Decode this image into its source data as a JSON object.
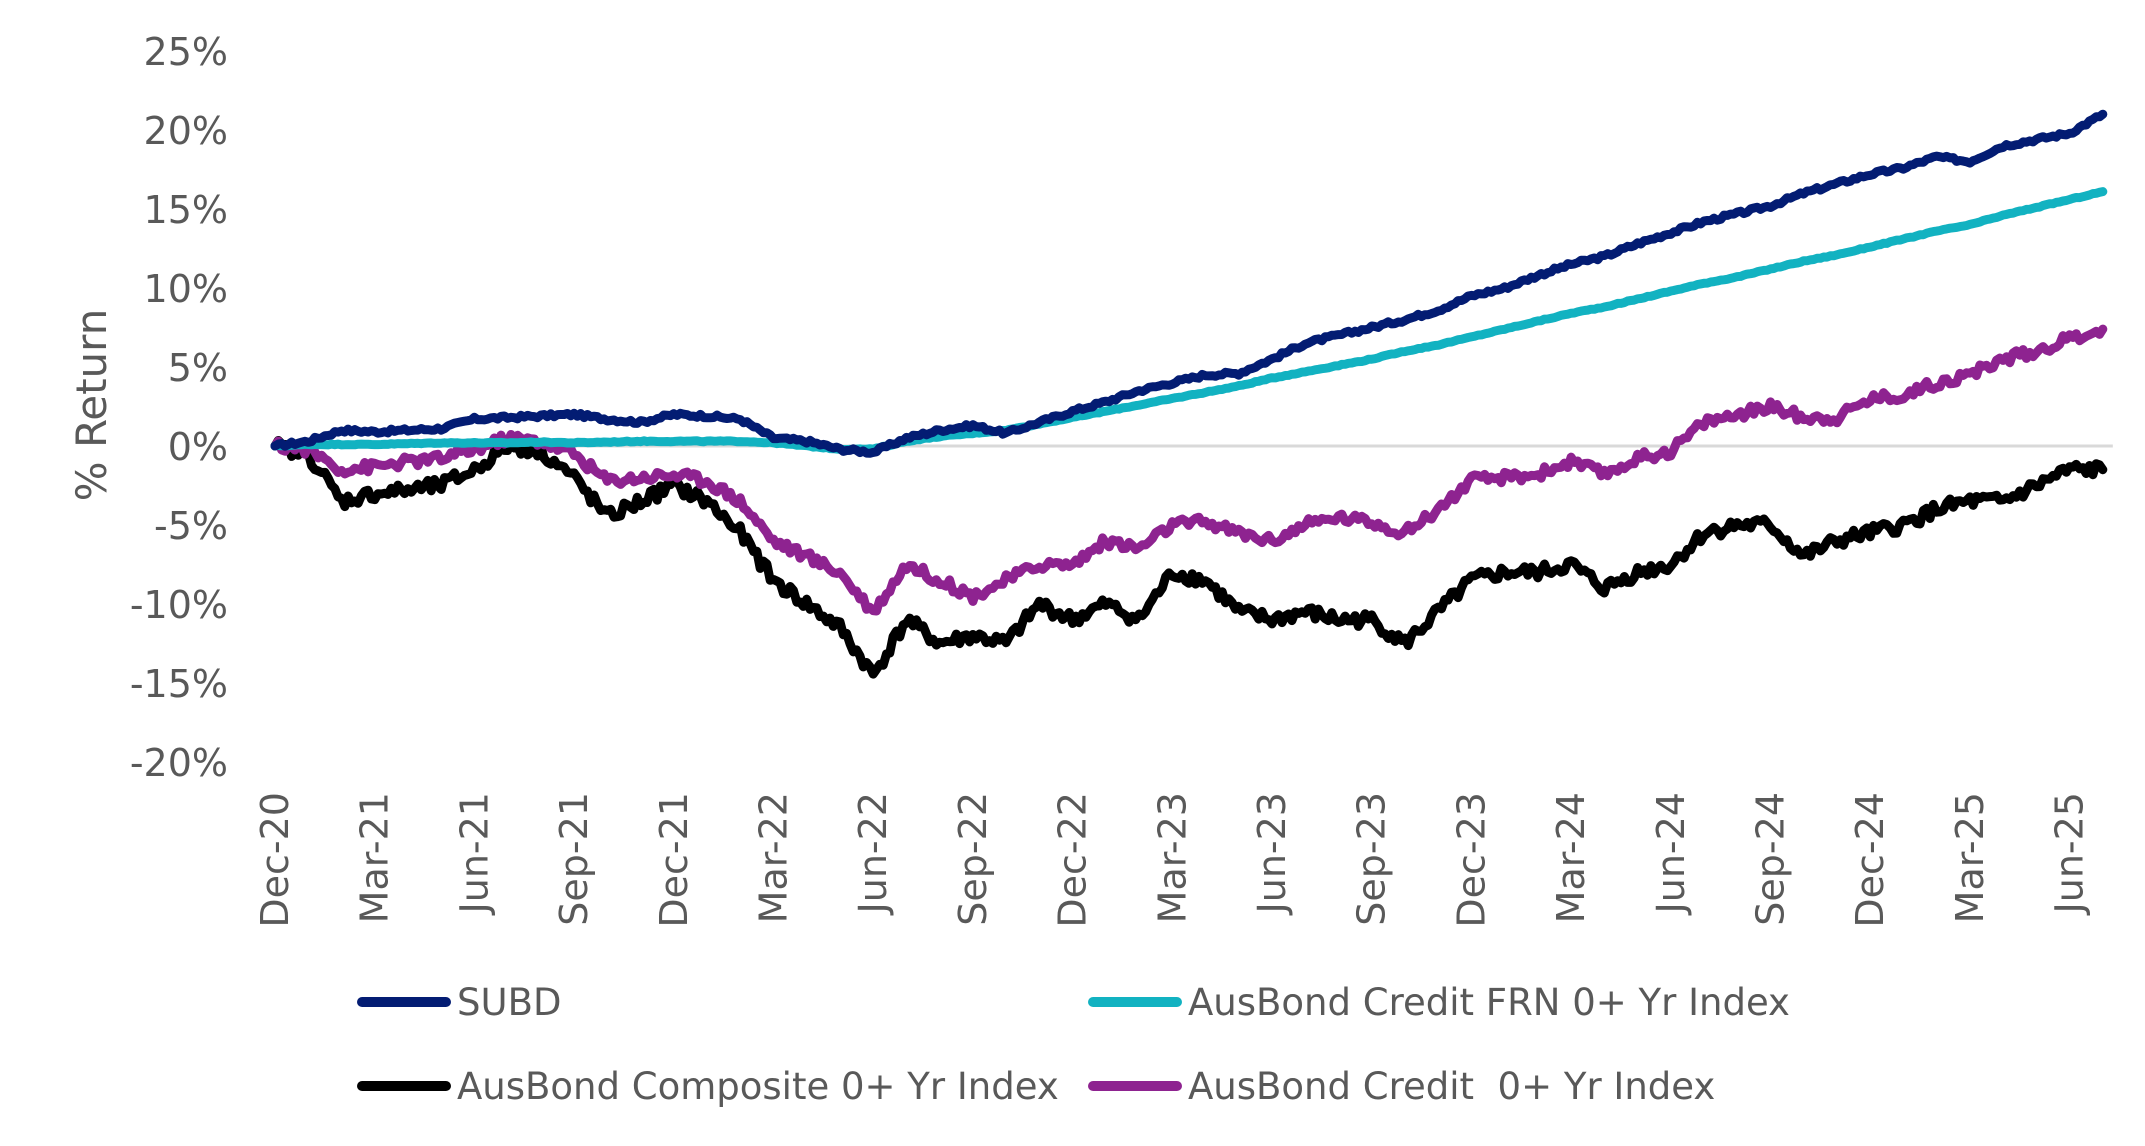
{
  "chart_data": {
    "type": "line",
    "title": "",
    "xlabel": "",
    "ylabel": "% Return",
    "ylim": [
      -20,
      25
    ],
    "yticks": [
      25,
      20,
      15,
      10,
      5,
      0,
      -5,
      -10,
      -15,
      -20
    ],
    "ytick_labels": [
      "25%",
      "20%",
      "15%",
      "10%",
      "5%",
      "0%",
      "-5%",
      "-10%",
      "-15%",
      "-20%"
    ],
    "x_tick_labels": [
      "Dec-20",
      "Mar-21",
      "Jun-21",
      "Sep-21",
      "Dec-21",
      "Mar-22",
      "Jun-22",
      "Sep-22",
      "Dec-22",
      "Mar-23",
      "Jun-23",
      "Sep-23",
      "Dec-23",
      "Mar-24",
      "Jun-24",
      "Sep-24",
      "Dec-24",
      "Mar-25",
      "Jun-25"
    ],
    "x": [
      "Dec-20",
      "Jan-21",
      "Feb-21",
      "Mar-21",
      "Apr-21",
      "May-21",
      "Jun-21",
      "Jul-21",
      "Aug-21",
      "Sep-21",
      "Oct-21",
      "Nov-21",
      "Dec-21",
      "Jan-22",
      "Feb-22",
      "Mar-22",
      "Apr-22",
      "May-22",
      "Jun-22",
      "Jul-22",
      "Aug-22",
      "Sep-22",
      "Oct-22",
      "Nov-22",
      "Dec-22",
      "Jan-23",
      "Feb-23",
      "Mar-23",
      "Apr-23",
      "May-23",
      "Jun-23",
      "Jul-23",
      "Aug-23",
      "Sep-23",
      "Oct-23",
      "Nov-23",
      "Dec-23",
      "Jan-24",
      "Feb-24",
      "Mar-24",
      "Apr-24",
      "May-24",
      "Jun-24",
      "Jul-24",
      "Aug-24",
      "Sep-24",
      "Oct-24",
      "Nov-24",
      "Dec-24",
      "Jan-25",
      "Feb-25",
      "Mar-25",
      "Apr-25",
      "May-25",
      "Jun-25",
      "Jul-25"
    ],
    "zero_line": true,
    "grid": false,
    "legend_position": "bottom",
    "series": [
      {
        "name": "SUBD",
        "color": "#031C73",
        "values": [
          0,
          0.3,
          1.0,
          0.9,
          1.0,
          1.1,
          1.7,
          1.8,
          1.9,
          2.0,
          1.7,
          1.5,
          2.0,
          1.9,
          1.7,
          0.5,
          0.3,
          -0.2,
          -0.4,
          0.5,
          1.0,
          1.3,
          0.8,
          1.5,
          2.2,
          2.8,
          3.5,
          4.0,
          4.5,
          4.6,
          5.5,
          6.5,
          7.0,
          7.5,
          8.0,
          8.6,
          9.5,
          10.0,
          10.8,
          11.5,
          12.0,
          12.8,
          13.5,
          14.2,
          14.7,
          15.2,
          16.0,
          16.6,
          17.2,
          17.6,
          18.3,
          18.0,
          19.0,
          19.4,
          19.8,
          21.0
        ]
      },
      {
        "name": "AusBond Credit FRN 0+ Yr Index",
        "color": "#12B2C1",
        "values": [
          0,
          0.1,
          0.1,
          0.1,
          0.15,
          0.2,
          0.2,
          0.2,
          0.25,
          0.2,
          0.25,
          0.3,
          0.3,
          0.3,
          0.3,
          0.2,
          0.0,
          -0.2,
          -0.2,
          0.3,
          0.6,
          0.8,
          1.0,
          1.4,
          1.8,
          2.2,
          2.6,
          3.0,
          3.4,
          3.8,
          4.3,
          4.7,
          5.1,
          5.5,
          6.0,
          6.4,
          6.9,
          7.4,
          7.9,
          8.4,
          8.8,
          9.3,
          9.8,
          10.3,
          10.7,
          11.2,
          11.7,
          12.1,
          12.6,
          13.1,
          13.6,
          14.0,
          14.6,
          15.1,
          15.6,
          16.1
        ]
      },
      {
        "name": "AusBond Composite 0+ Yr Index",
        "color": "#000000",
        "values": [
          0,
          -0.5,
          -3.5,
          -3.0,
          -2.8,
          -2.5,
          -1.5,
          0.0,
          -0.3,
          -2.0,
          -4.5,
          -3.5,
          -2.5,
          -3.5,
          -5.5,
          -8.5,
          -10.0,
          -11.5,
          -14.5,
          -11.0,
          -12.5,
          -12.0,
          -12.5,
          -10.0,
          -11.0,
          -10.0,
          -11.0,
          -8.0,
          -8.5,
          -10.5,
          -11.0,
          -10.5,
          -11.0,
          -11.0,
          -12.5,
          -10.5,
          -8.5,
          -8.0,
          -8.0,
          -7.5,
          -9.0,
          -8.0,
          -7.5,
          -5.5,
          -5.0,
          -5.0,
          -7.0,
          -6.0,
          -5.5,
          -5.0,
          -4.0,
          -3.5,
          -3.5,
          -2.5,
          -1.5,
          -1.5
        ]
      },
      {
        "name": "AusBond Credit  0+ Yr Index",
        "color": "#8E2390",
        "values": [
          0,
          -0.2,
          -1.5,
          -1.3,
          -1.0,
          -0.8,
          -0.2,
          0.5,
          0.3,
          -0.5,
          -2.2,
          -2.0,
          -1.8,
          -2.2,
          -3.5,
          -6.0,
          -7.0,
          -8.0,
          -10.5,
          -7.5,
          -8.5,
          -9.5,
          -8.5,
          -7.5,
          -7.5,
          -6.0,
          -6.5,
          -5.0,
          -4.8,
          -5.5,
          -6.0,
          -5.0,
          -4.5,
          -4.8,
          -5.5,
          -4.0,
          -2.2,
          -2.0,
          -1.8,
          -1.0,
          -1.8,
          -0.8,
          -0.3,
          1.5,
          2.0,
          2.5,
          1.8,
          1.8,
          3.0,
          3.2,
          4.0,
          4.5,
          5.5,
          6.0,
          6.8,
          7.4
        ]
      }
    ]
  },
  "legend": {
    "items": [
      {
        "label": "SUBD",
        "color": "#031C73"
      },
      {
        "label": "AusBond Credit FRN 0+ Yr Index",
        "color": "#12B2C1"
      },
      {
        "label": "AusBond Composite 0+ Yr Index",
        "color": "#000000"
      },
      {
        "label": "AusBond Credit  0+ Yr Index",
        "color": "#8E2390"
      }
    ]
  }
}
